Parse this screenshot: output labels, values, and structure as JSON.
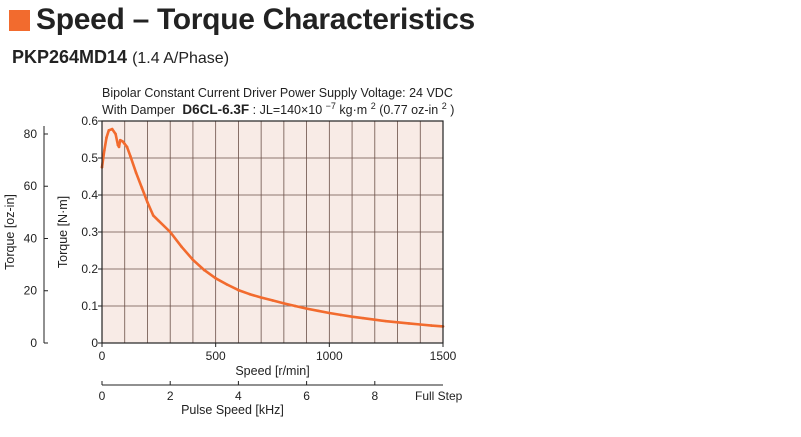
{
  "colors": {
    "accent": "#f26b2e",
    "curve": "#f26b2e",
    "plot_background": "#f8ebe6",
    "grid": "#6b5048",
    "frame": "#222222"
  },
  "header": {
    "title": "Speed – Torque Characteristics",
    "title_icon": "orange-square-icon",
    "model": "PKP264MD14",
    "model_spec": "(1.4 A/Phase)"
  },
  "notes": {
    "line1": "Bipolar Constant Current Driver  Power Supply Voltage: 24 VDC",
    "line2_prefix": "With Damper",
    "line2_damper": "D6CL-6.3F",
    "line2_jl": ": JL=140×10",
    "line2_exp1": "−7",
    "line2_units": " kg·m",
    "line2_exp2": "2",
    "line2_oz": " (0.77 oz-in",
    "line2_exp3": "2",
    "line2_close": ")"
  },
  "chart_data": {
    "type": "line",
    "title": "",
    "xlabel": "Speed [r/min]",
    "ylabel": "Torque [N·m]",
    "xlim": [
      0,
      1500
    ],
    "ylim": [
      0,
      0.6
    ],
    "x_ticks": [
      0,
      500,
      1000,
      1500
    ],
    "y_ticks": [
      0,
      0.1,
      0.2,
      0.3,
      0.4,
      0.5,
      0.6
    ],
    "y_tick_labels": [
      "0",
      "0.1",
      "0.2",
      "0.3",
      "0.4",
      "0.5",
      "0.6"
    ],
    "secondary_y": {
      "label": "Torque [oz-in]",
      "ticks": [
        0,
        20,
        40,
        60,
        80
      ],
      "tick_labels": [
        "0",
        "20",
        "40",
        "60",
        "80"
      ],
      "lim": [
        0,
        84.97
      ]
    },
    "secondary_x": {
      "label": "Pulse Speed [kHz]",
      "ticks": [
        0,
        2,
        4,
        6,
        8
      ],
      "tick_labels": [
        "0",
        "2",
        "4",
        "6",
        "8"
      ],
      "lim": [
        0,
        10
      ],
      "end_label": "Full Step"
    },
    "grid": true,
    "x_grid_step": 100,
    "y_grid_step": 0.1,
    "legend": "none",
    "series": [
      {
        "color": "#f26b2e",
        "x": [
          0,
          10,
          20,
          30,
          45,
          60,
          70,
          75,
          80,
          90,
          100,
          110,
          125,
          150,
          175,
          200,
          225,
          250,
          300,
          350,
          400,
          450,
          500,
          550,
          600,
          650,
          700,
          750,
          800,
          850,
          900,
          950,
          1000,
          1050,
          1100,
          1150,
          1200,
          1250,
          1300,
          1350,
          1400,
          1450,
          1500
        ],
        "y": [
          0.475,
          0.52,
          0.555,
          0.575,
          0.578,
          0.565,
          0.535,
          0.53,
          0.548,
          0.545,
          0.538,
          0.53,
          0.505,
          0.46,
          0.42,
          0.38,
          0.345,
          0.33,
          0.3,
          0.26,
          0.225,
          0.197,
          0.175,
          0.158,
          0.143,
          0.132,
          0.123,
          0.115,
          0.107,
          0.1,
          0.093,
          0.087,
          0.081,
          0.076,
          0.071,
          0.067,
          0.063,
          0.059,
          0.056,
          0.053,
          0.05,
          0.047,
          0.045
        ]
      }
    ]
  }
}
